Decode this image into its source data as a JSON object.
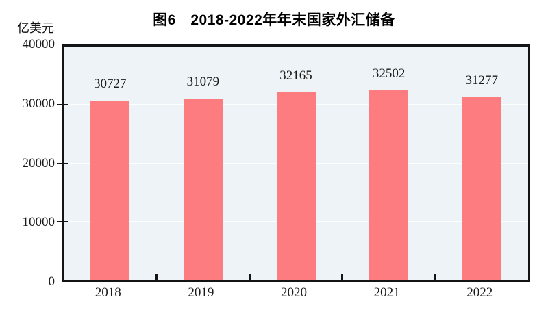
{
  "figure": {
    "title": "图6　2018-2022年年末国家外汇储备",
    "unit_label": "亿美元"
  },
  "chart_data": {
    "type": "bar",
    "title": "图6　2018-2022年年末国家外汇储备",
    "ylabel": "亿美元",
    "xlabel": "",
    "categories": [
      "2018",
      "2019",
      "2020",
      "2021",
      "2022"
    ],
    "values": [
      30727,
      31079,
      32165,
      32502,
      31277
    ],
    "data_labels": [
      "30727",
      "31079",
      "32165",
      "32502",
      "31277"
    ],
    "ylim": [
      0,
      40000
    ],
    "yticks": [
      0,
      10000,
      20000,
      30000,
      40000
    ],
    "grid": "horizontal white gridlines at 10000/20000/30000",
    "legend": "none",
    "bar_color": "#fc7c80",
    "plot_bg_color": "#edf3f6",
    "axis_color": "#141414"
  }
}
